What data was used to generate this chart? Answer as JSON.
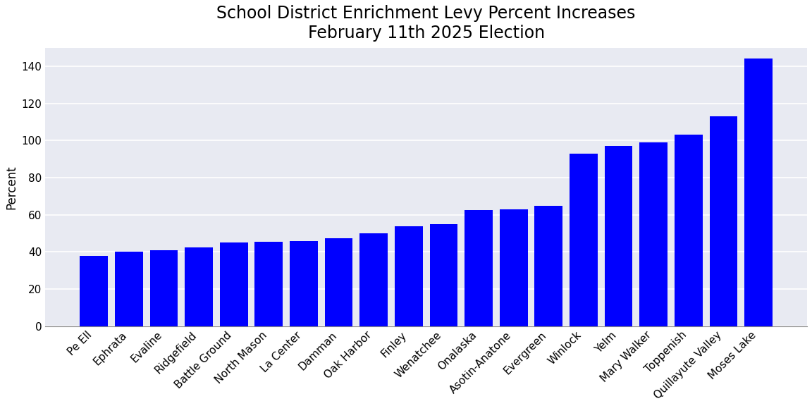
{
  "title": "School District Enrichment Levy Percent Increases\nFebruary 11th 2025 Election",
  "ylabel": "Percent",
  "categories": [
    "Pe Ell",
    "Ephrata",
    "Evaline",
    "Ridgefield",
    "Battle Ground",
    "North Mason",
    "La Center",
    "Damman",
    "Oak Harbor",
    "Finley",
    "Wenatchee",
    "Onalaska",
    "Asotin-Anatone",
    "Evergreen",
    "Winlock",
    "Yelm",
    "Mary Walker",
    "Toppenish",
    "Quillayute Valley",
    "Moses Lake"
  ],
  "values": [
    38,
    40,
    41,
    42.5,
    45,
    45.5,
    46,
    47.5,
    50,
    54,
    55,
    62.5,
    63,
    65,
    93,
    97,
    99,
    103,
    113,
    144
  ],
  "bar_color": "#0000FF",
  "plot_background_color": "#E8EAF2",
  "figure_background_color": "#FFFFFF",
  "grid_color": "#FFFFFF",
  "ylim": [
    0,
    150
  ],
  "yticks": [
    0,
    20,
    40,
    60,
    80,
    100,
    120,
    140
  ],
  "title_fontsize": 17,
  "label_fontsize": 12,
  "tick_fontsize": 11,
  "bar_width": 0.8
}
